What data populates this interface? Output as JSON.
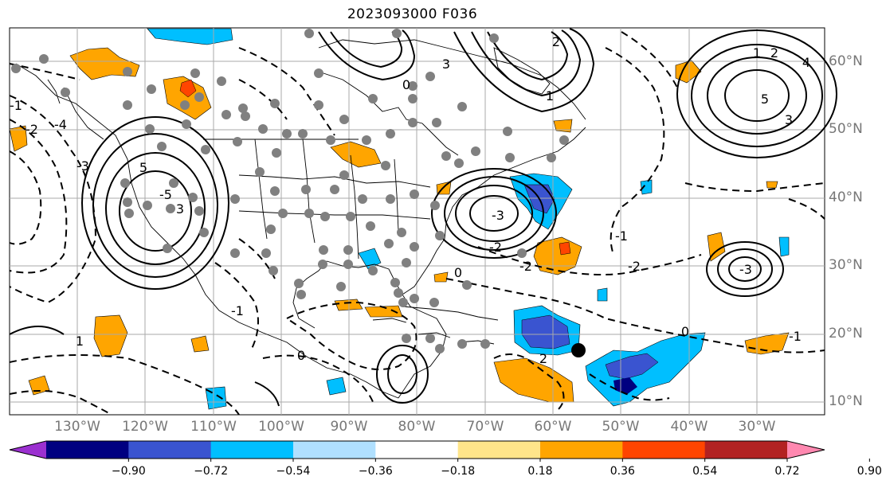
{
  "title": "2023093000 F036",
  "latitude_labels": [
    "60°N",
    "50°N",
    "40°N",
    "30°N",
    "20°N",
    "10°N"
  ],
  "longitude_labels": [
    "130°W",
    "120°W",
    "110°W",
    "100°W",
    "90°W",
    "80°W",
    "70°W",
    "60°W",
    "50°W",
    "40°W",
    "30°W"
  ],
  "contour_labels": [
    "3",
    "3",
    "2",
    "1",
    "0",
    "-1",
    "-2",
    "-3",
    "-4",
    "-5",
    "4",
    "5",
    "0",
    "-1",
    "-2",
    "-3",
    "-2",
    "-1",
    "0",
    "-1",
    "-2",
    "-3",
    "2",
    "1",
    "0",
    "3",
    "5",
    "1",
    "2"
  ],
  "colorbar": {
    "ticks": [
      "−0.90",
      "−0.72",
      "−0.54",
      "−0.36",
      "−0.18",
      "0.18",
      "0.36",
      "0.54",
      "0.72",
      "0.90"
    ],
    "colors": [
      "#9b30d0",
      "#000080",
      "#3a54d0",
      "#00bfff",
      "#b0e0ff",
      "#ffffff",
      "#ffe58a",
      "#ffa500",
      "#ff4500",
      "#b22222",
      "#ff88b0"
    ]
  }
}
